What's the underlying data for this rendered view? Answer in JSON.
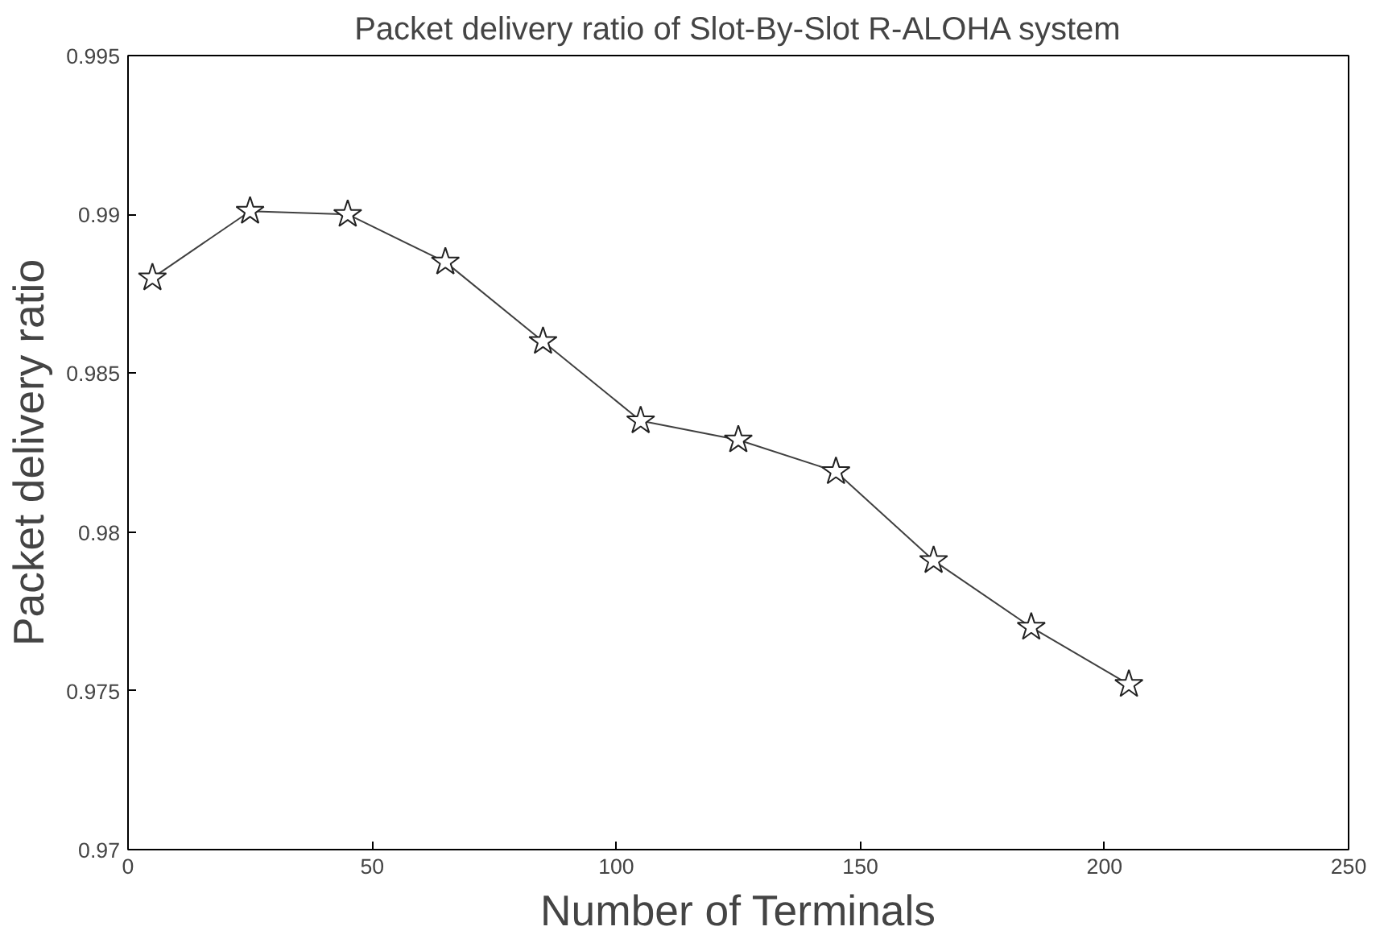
{
  "chart_data": {
    "type": "line",
    "title": "Packet delivery ratio of Slot-By-Slot R-ALOHA system",
    "xlabel": "Number of Terminals",
    "ylabel": "Packet delivery ratio",
    "x": [
      5,
      25,
      45,
      65,
      85,
      105,
      125,
      145,
      165,
      185,
      205
    ],
    "series": [
      {
        "color": "#404040",
        "values": [
          0.988,
          0.9901,
          0.99,
          0.9885,
          0.986,
          0.9835,
          0.9829,
          0.9819,
          0.9791,
          0.977,
          0.9752
        ]
      }
    ],
    "xlim": [
      0,
      250
    ],
    "xticks": [
      0,
      50,
      100,
      150,
      200,
      250
    ],
    "ylim": [
      0.97,
      0.995
    ],
    "yticks": [
      0.97,
      0.975,
      0.98,
      0.985,
      0.99,
      0.995
    ],
    "grid": false,
    "marker": "star",
    "line_style": "solid"
  }
}
